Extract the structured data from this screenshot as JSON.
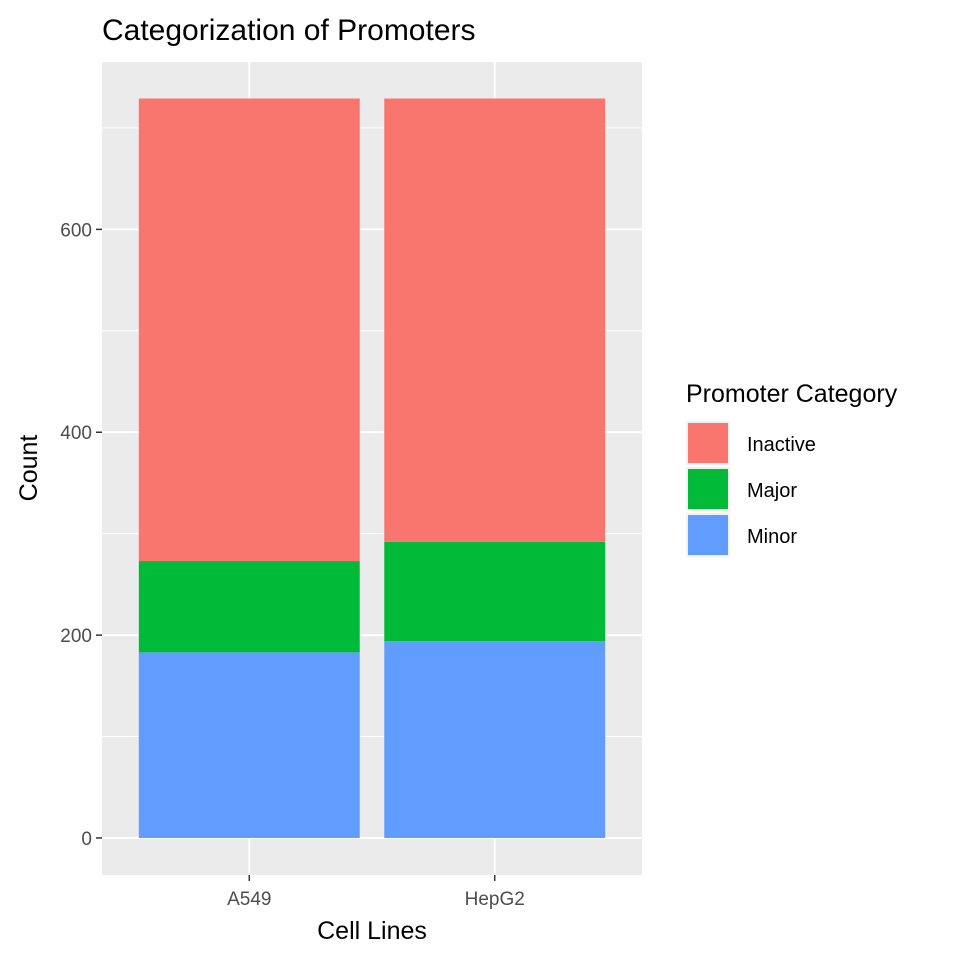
{
  "chart_data": {
    "type": "bar",
    "stacked": true,
    "title": "Categorization of Promoters",
    "xlabel": "Cell Lines",
    "ylabel": "Count",
    "categories": [
      "A549",
      "HepG2"
    ],
    "ylim": [
      -36.5,
      765
    ],
    "yticks": [
      0,
      200,
      400,
      600
    ],
    "grid": true,
    "legend": {
      "title": "Promoter Category",
      "position": "right",
      "entries": [
        "Inactive",
        "Major",
        "Minor"
      ]
    },
    "series": [
      {
        "name": "Minor",
        "values": [
          183,
          194
        ],
        "color": "#619CFF"
      },
      {
        "name": "Major",
        "values": [
          90,
          98
        ],
        "color": "#00BA38"
      },
      {
        "name": "Inactive",
        "values": [
          456,
          437
        ],
        "color": "#F8766D"
      }
    ],
    "panel_background": "#EBEBEB",
    "grid_color": "#FFFFFF"
  }
}
